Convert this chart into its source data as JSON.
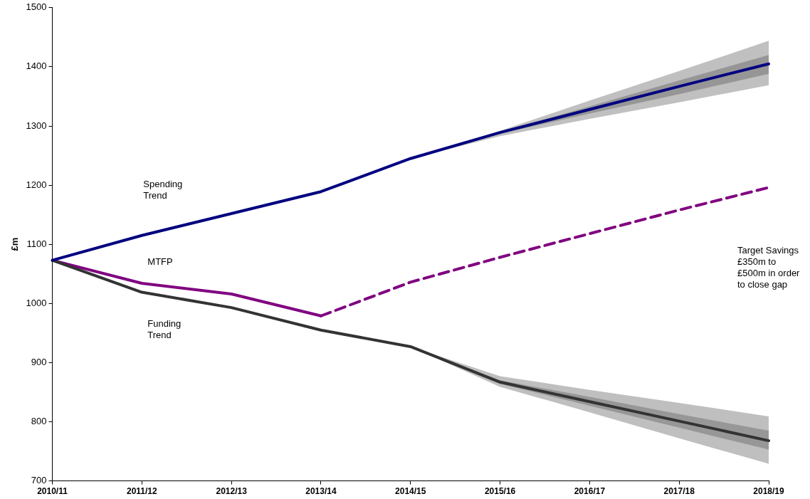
{
  "chart_data": {
    "type": "line",
    "ylabel": "£m",
    "categories": [
      "2010/11",
      "2011/12",
      "2012/13",
      "2013/14",
      "2014/15",
      "2015/16",
      "2016/17",
      "2017/18",
      "2018/19"
    ],
    "series": [
      {
        "color": "#c0c0c0",
        "values": [
          null,
          null,
          null,
          null,
          null,
          null,
          null,
          null,
          null
        ],
        "lower": [
          null,
          null,
          null,
          null,
          1245,
          1283,
          1312,
          1340,
          1369
        ],
        "upper": [
          null,
          null,
          null,
          null,
          1245,
          1292,
          1343,
          1393,
          1444
        ]
      },
      {
        "color": "#969696",
        "values": [
          null,
          null,
          null,
          null,
          null,
          null,
          null,
          null,
          null
        ],
        "lower": [
          null,
          null,
          null,
          null,
          1245,
          1287,
          1321,
          1354,
          1388
        ],
        "upper": [
          null,
          null,
          null,
          null,
          1245,
          1290,
          1333,
          1377,
          1420
        ]
      },
      {
        "color": "#bfbfbf",
        "values": [
          null,
          null,
          null,
          null,
          null,
          null,
          null,
          null,
          null
        ],
        "lower": [
          null,
          null,
          null,
          null,
          927,
          859,
          816,
          772,
          729
        ],
        "upper": [
          null,
          null,
          null,
          null,
          927,
          877,
          854,
          832,
          809
        ]
      },
      {
        "color": "#979797",
        "values": [
          null,
          null,
          null,
          null,
          null,
          null,
          null,
          null,
          null
        ],
        "lower": [
          null,
          null,
          null,
          null,
          927,
          864,
          827,
          790,
          753
        ],
        "upper": [
          null,
          null,
          null,
          null,
          927,
          870,
          842,
          813,
          785
        ]
      },
      {
        "name": "Spending Trend",
        "color": "#000080",
        "values": [
          1073,
          1115,
          1152,
          1189,
          1245,
          1289,
          1328,
          1367,
          1405
        ]
      },
      {
        "name": "Funding Trend",
        "color": "#333333",
        "values": [
          1073,
          1019,
          993,
          955,
          927,
          867,
          834,
          801,
          768
        ]
      },
      {
        "name": "MTFP",
        "color": "#800080",
        "values": [
          1073,
          1034,
          1016,
          979,
          null,
          null,
          null,
          null,
          null
        ],
        "line_style": "solid"
      },
      {
        "color": "#800080",
        "values": [
          null,
          null,
          null,
          979,
          1036,
          1078,
          1118,
          1158,
          1196
        ],
        "line_style": "dashed"
      }
    ],
    "ylim": [
      700,
      1500
    ],
    "yticks": [
      700,
      800,
      900,
      1000,
      1100,
      1200,
      1300,
      1400,
      1500
    ],
    "grid": false,
    "legend": false,
    "marker": "none",
    "annotations": [
      "Target Savings £350m to £500m in order to close gap"
    ]
  }
}
